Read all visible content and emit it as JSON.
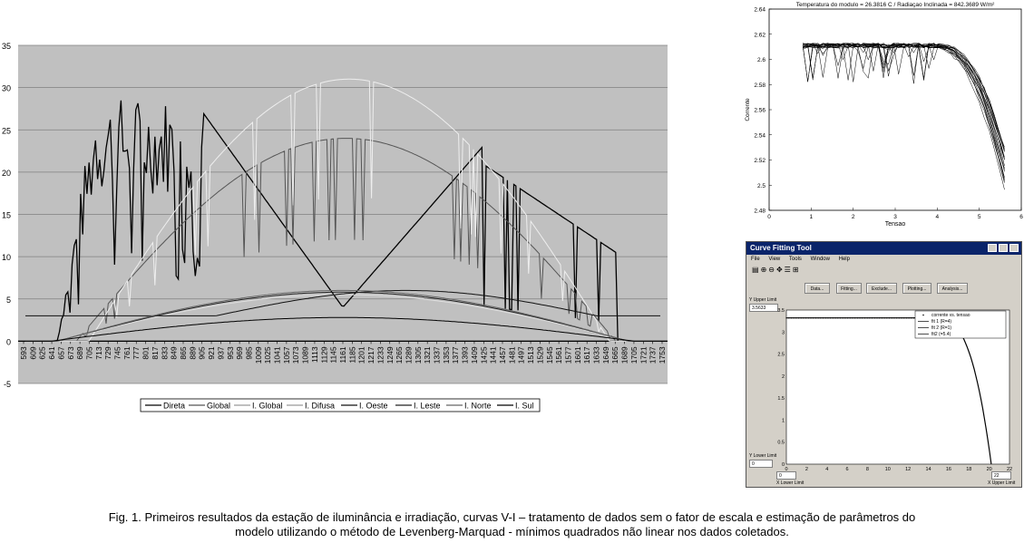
{
  "chart_main": {
    "type": "line",
    "yticks": [
      "35",
      "30",
      "25",
      "20",
      "15",
      "10",
      "5",
      "0",
      "-5"
    ],
    "ylim": [
      -5,
      35
    ],
    "xticks": [
      "593",
      "609",
      "625",
      "641",
      "657",
      "673",
      "689",
      "705",
      "713",
      "729",
      "745",
      "761",
      "777",
      "801",
      "817",
      "833",
      "849",
      "865",
      "889",
      "905",
      "921",
      "937",
      "953",
      "969",
      "985",
      "1009",
      "1025",
      "1041",
      "1057",
      "1073",
      "1089",
      "1113",
      "1129",
      "1145",
      "1161",
      "1185",
      "1201",
      "1217",
      "1233",
      "1249",
      "1265",
      "1289",
      "1305",
      "1321",
      "1337",
      "1353",
      "1377",
      "1393",
      "1409",
      "1425",
      "1441",
      "1457",
      "1481",
      "1497",
      "1513",
      "1529",
      "1545",
      "1561",
      "1577",
      "1601",
      "1617",
      "1633",
      "1649",
      "1665",
      "1689",
      "1705",
      "1721",
      "1737",
      "1753"
    ],
    "legend": [
      "Direta",
      "Global",
      "I. Global",
      "I. Difusa",
      "I. Oeste",
      "I. Leste",
      "I. Norte",
      "I. Sul"
    ],
    "colors": {
      "plot_bg": "#c0c0c0",
      "grid": "#808080"
    }
  },
  "chart_iv": {
    "type": "scatter",
    "title": "Temperatura do modulo = 26.3816 C / Radiaçao Inclinada = 842.3689 W/m²",
    "xlabel": "Tensao",
    "ylabel": "Corrente",
    "xlim": [
      0,
      6
    ],
    "ylim": [
      2.48,
      2.64
    ],
    "xticks": [
      "0",
      "1",
      "2",
      "3",
      "4",
      "5",
      "6"
    ],
    "yticks": [
      "2.64",
      "2.62",
      "2.6",
      "2.58",
      "2.56",
      "2.54",
      "2.52",
      "2.5",
      "2.48"
    ]
  },
  "cft": {
    "title": "Curve Fitting Tool",
    "menu": [
      "File",
      "View",
      "Tools",
      "Window",
      "Help"
    ],
    "buttons": [
      "Data...",
      "Fitting...",
      "Exclude...",
      "Plotting...",
      "Analysis..."
    ],
    "y_upper_label": "Y Upper Limit",
    "y_upper_value": "3.5633",
    "y_lower_label": "Y Lower Limit",
    "y_lower_value": "0",
    "x_lower_label": "X Lower Limit",
    "x_lower_value": "0",
    "x_upper_label": "X Upper Limit",
    "x_upper_value": "22",
    "chart": {
      "type": "line",
      "xlim": [
        0,
        22
      ],
      "ylim": [
        0,
        3.5
      ],
      "xticks": [
        "0",
        "2",
        "4",
        "6",
        "8",
        "10",
        "12",
        "14",
        "16",
        "18",
        "20",
        "22"
      ],
      "yticks": [
        "3.5",
        "3",
        "2.5",
        "2",
        "1.5",
        "1",
        "0.5",
        "0"
      ],
      "legend": [
        "corrente vs. tensao",
        "fit 1 (R=4)",
        "fit 2 (R=1)",
        "fit2 (=5.4)"
      ]
    }
  },
  "caption_line1": "Fig. 1. Primeiros resultados da estação de iluminância e irradiação, curvas V-I – tratamento de dados sem o fator de escala e estimação de parâmetros do",
  "caption_line2": "modelo utilizando o método de Levenberg-Marquad - mínimos quadrados não linear nos dados coletados."
}
